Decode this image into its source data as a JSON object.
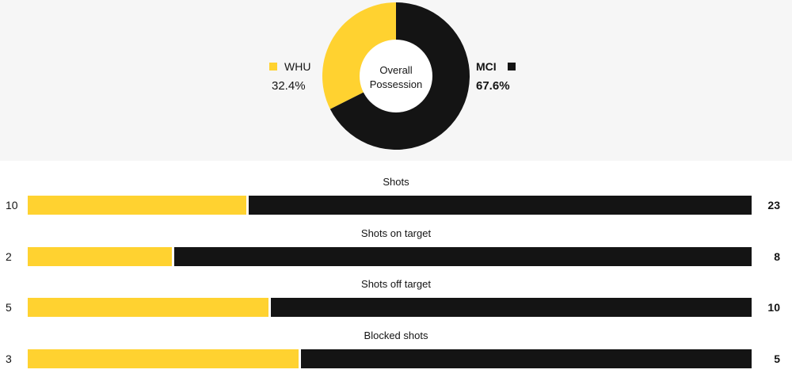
{
  "colors": {
    "home": "#ffd230",
    "away": "#141414",
    "panel_bg": "#f6f6f6"
  },
  "chart_data": [
    {
      "type": "pie",
      "center_label": [
        "Overall",
        "Possession"
      ],
      "slices": [
        {
          "name": "WHU",
          "value": 32.4,
          "label": "32.4%"
        },
        {
          "name": "MCI",
          "value": 67.6,
          "label": "67.6%"
        }
      ]
    },
    {
      "type": "bar",
      "orientation": "horizontal-stacked",
      "categories": [
        "Shots",
        "Shots on target",
        "Shots off target",
        "Blocked shots"
      ],
      "series": [
        {
          "name": "WHU",
          "values": [
            10,
            2,
            5,
            3
          ]
        },
        {
          "name": "MCI",
          "values": [
            23,
            8,
            10,
            5
          ]
        }
      ]
    }
  ]
}
